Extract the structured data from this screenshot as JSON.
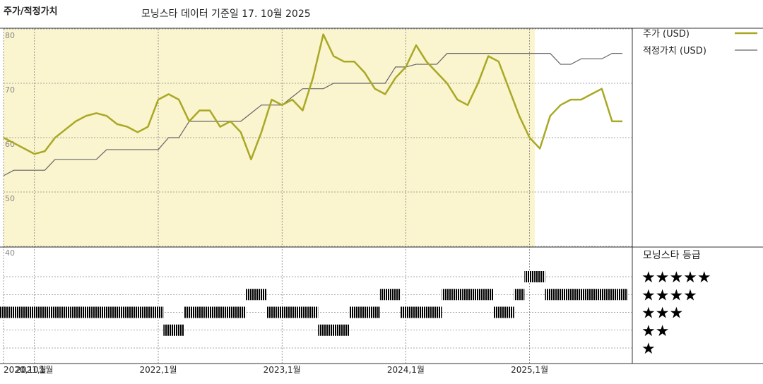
{
  "chart_data": {
    "type": "line",
    "title": "주가/적정가치",
    "subtitle": "모닝스타 데이터 기준일 17. 10월 2025",
    "x": [
      "2020-10",
      "2020-11",
      "2020-12",
      "2021-01",
      "2021-02",
      "2021-03",
      "2021-04",
      "2021-05",
      "2021-06",
      "2021-07",
      "2021-08",
      "2021-09",
      "2021-10",
      "2021-11",
      "2021-12",
      "2022-01",
      "2022-02",
      "2022-03",
      "2022-04",
      "2022-05",
      "2022-06",
      "2022-07",
      "2022-08",
      "2022-09",
      "2022-10",
      "2022-11",
      "2022-12",
      "2023-01",
      "2023-02",
      "2023-03",
      "2023-04",
      "2023-05",
      "2023-06",
      "2023-07",
      "2023-08",
      "2023-09",
      "2023-10",
      "2023-11",
      "2023-12",
      "2024-01",
      "2024-02",
      "2024-03",
      "2024-04",
      "2024-05",
      "2024-06",
      "2024-07",
      "2024-08",
      "2024-09",
      "2024-10",
      "2024-11",
      "2024-12",
      "2025-01",
      "2025-02",
      "2025-03",
      "2025-04",
      "2025-05",
      "2025-06",
      "2025-07",
      "2025-08",
      "2025-09",
      "2025-10"
    ],
    "series": [
      {
        "name": "주가 (USD)",
        "color": "#a9a824",
        "values": [
          60,
          59,
          58,
          57,
          57.5,
          60,
          61.5,
          63,
          64,
          64.5,
          64,
          62.5,
          62,
          61,
          62,
          67,
          68,
          67,
          63,
          65,
          65,
          62,
          63,
          61,
          56,
          61,
          67,
          66,
          67,
          65,
          71,
          79,
          75,
          74,
          74,
          72,
          69,
          68,
          71,
          73,
          77,
          74,
          72,
          70,
          67,
          66,
          70,
          75,
          74,
          69,
          64,
          60,
          58,
          64,
          66,
          67,
          67,
          68,
          69,
          63,
          63
        ]
      },
      {
        "name": "적정가치 (USD)",
        "color": "#666666",
        "values": [
          53,
          54,
          54,
          54,
          54,
          56,
          56,
          56,
          56,
          56,
          57.8,
          57.8,
          57.8,
          57.8,
          57.8,
          57.8,
          60,
          60,
          63,
          63,
          63,
          63,
          63,
          63,
          64.5,
          66,
          66,
          66,
          67.5,
          69,
          69,
          69,
          70,
          70,
          70,
          70,
          70,
          70,
          73,
          73,
          73.5,
          73.5,
          73.5,
          75.5,
          75.5,
          75.5,
          75.5,
          75.5,
          75.5,
          75.5,
          75.5,
          75.5,
          75.5,
          75.5,
          73.5,
          73.5,
          74.5,
          74.5,
          74.5,
          75.5,
          75.5
        ]
      }
    ],
    "ylim": [
      40,
      80
    ],
    "yticks": [
      40,
      50,
      60,
      70,
      80
    ],
    "xticks": [
      {
        "value": "2020-10",
        "label": "2020,10월"
      },
      {
        "value": "2021-01",
        "label": "2021,1월"
      },
      {
        "value": "2022-01",
        "label": "2022,1월"
      },
      {
        "value": "2023-01",
        "label": "2023,1월"
      },
      {
        "value": "2024-01",
        "label": "2024,1월"
      },
      {
        "value": "2025-01",
        "label": "2025,1월"
      }
    ],
    "grid": true,
    "rating_title": "모닝스타 등급",
    "ratings": [
      3,
      3,
      3,
      3,
      3,
      3,
      3,
      3,
      3,
      3,
      3,
      3,
      3,
      3,
      3,
      3,
      2,
      2,
      3,
      3,
      3,
      3,
      3,
      3,
      4,
      4,
      3,
      3,
      3,
      3,
      3,
      2,
      2,
      2,
      3,
      3,
      3,
      4,
      4,
      3,
      3,
      3,
      3,
      4,
      4,
      4,
      4,
      4,
      3,
      3,
      4,
      5,
      5,
      4,
      4,
      4,
      4,
      4,
      4,
      4,
      4
    ],
    "rating_ticks": [
      {
        "value": 5,
        "label": "★★★★★"
      },
      {
        "value": 4,
        "label": "★★★★"
      },
      {
        "value": 3,
        "label": "★★★"
      },
      {
        "value": 2,
        "label": "★★"
      },
      {
        "value": 1,
        "label": "★"
      }
    ],
    "rating_colors": {
      "normal": "#333333",
      "top": "#3a8a6a"
    }
  }
}
